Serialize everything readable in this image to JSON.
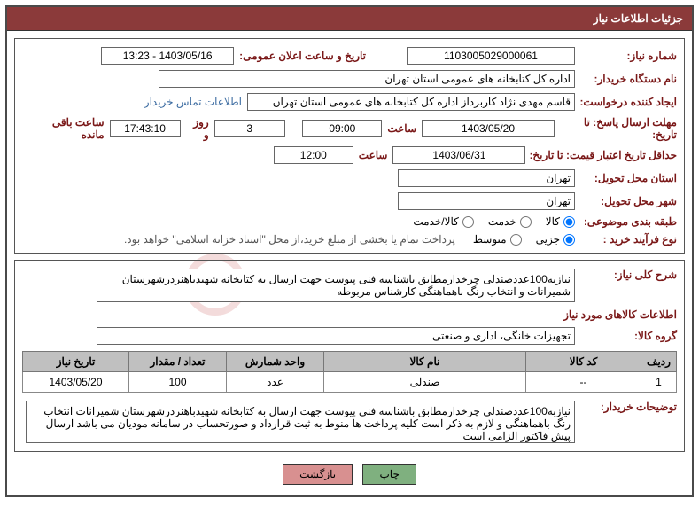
{
  "header": {
    "title": "جزئیات اطلاعات نیاز"
  },
  "labels": {
    "need_no": "شماره نیاز:",
    "announce_date": "تاریخ و ساعت اعلان عمومی:",
    "buyer_org": "نام دستگاه خریدار:",
    "requester": "ایجاد کننده درخواست:",
    "contact": "اطلاعات تماس خریدار",
    "deadline": "مهلت ارسال پاسخ: تا تاریخ:",
    "hour": "ساعت",
    "day_and": "روز و",
    "remain": "ساعت باقی مانده",
    "min_valid": "حداقل تاریخ اعتبار قیمت: تا تاریخ:",
    "deliver_prov": "استان محل تحویل:",
    "deliver_city": "شهر محل تحویل:",
    "subject_class": "طبقه بندی موضوعی:",
    "process_type": "نوع فرآیند خرید :",
    "payment_note": "پرداخت تمام یا بخشی از مبلغ خرید،از محل \"اسناد خزانه اسلامی\" خواهد بود.",
    "overall_desc": "شرح کلی نیاز:",
    "items_info": "اطلاعات کالاهای مورد نیاز",
    "goods_group": "گروه کالا:",
    "buyer_notes": "توضیحات خریدار:"
  },
  "values": {
    "need_no": "1103005029000061",
    "announce_date": "1403/05/16 - 13:23",
    "buyer_org": "اداره کل کتابخانه های عمومی استان تهران",
    "requester": "قاسم مهدی نژاد کاربرداز اداره کل کتابخانه های عمومی استان تهران",
    "deadline_date": "1403/05/20",
    "deadline_time": "09:00",
    "remain_days": "3",
    "remain_time": "17:43:10",
    "min_valid_date": "1403/06/31",
    "min_valid_time": "12:00",
    "deliver_prov": "تهران",
    "deliver_city": "تهران",
    "goods_group": "تجهیزات خانگی، اداری و صنعتی",
    "overall_desc": "نیازبه100عددصندلی چرخدارمطابق باشناسه فنی پیوست جهت ارسال به کتابخانه شهیدباهنردرشهرستان شمیرانات و انتخاب رنگ باهماهنگی کارشناس مربوطه",
    "buyer_notes": "نیازبه100عددصندلی چرخدارمطابق باشناسه فنی پیوست جهت ارسال به کتابخانه شهیدباهنردرشهرستان شمیرانات انتخاب رنگ باهماهنگی و لازم به ذکر است کلیه پرداخت ها منوط به ثبت قرارداد و صورتحساب در سامانه مودیان می باشد ارسال پیش فاکتور الزامی است"
  },
  "radios": {
    "subject": [
      {
        "label": "کالا",
        "checked": true
      },
      {
        "label": "خدمت",
        "checked": false
      },
      {
        "label": "کالا/خدمت",
        "checked": false
      }
    ],
    "process": [
      {
        "label": "جزيی",
        "checked": true
      },
      {
        "label": "متوسط",
        "checked": false
      }
    ]
  },
  "grid": {
    "headers": [
      "ردیف",
      "کد کالا",
      "نام کالا",
      "واحد شمارش",
      "تعداد / مقدار",
      "تاریخ نیاز"
    ],
    "rows": [
      [
        "1",
        "--",
        "صندلی",
        "عدد",
        "100",
        "1403/05/20"
      ]
    ],
    "col_widths": [
      "40px",
      "130px",
      "auto",
      "110px",
      "110px",
      "120px"
    ]
  },
  "buttons": {
    "print": "چاپ",
    "back": "بازگشت"
  },
  "watermark": "ir"
}
